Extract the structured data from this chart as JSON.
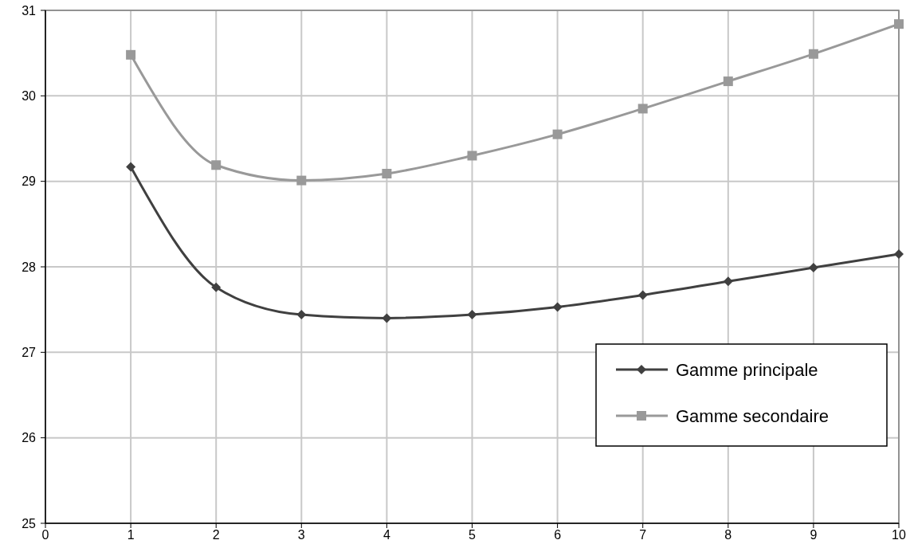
{
  "chart_data": {
    "type": "line",
    "x": [
      1,
      2,
      3,
      4,
      5,
      6,
      7,
      8,
      9,
      10
    ],
    "series": [
      {
        "name": "Gamme principale",
        "color": "#404040",
        "marker": "diamond",
        "values": [
          29.17,
          27.76,
          27.44,
          27.4,
          27.44,
          27.53,
          27.67,
          27.83,
          27.99,
          28.15
        ]
      },
      {
        "name": "Gamme secondaire",
        "color": "#999999",
        "marker": "square",
        "values": [
          30.48,
          29.19,
          29.01,
          29.09,
          29.3,
          29.55,
          29.85,
          30.17,
          30.49,
          30.84
        ]
      }
    ],
    "xlim": [
      0,
      10
    ],
    "xticks": [
      0,
      1,
      2,
      3,
      4,
      5,
      6,
      7,
      8,
      9,
      10
    ],
    "ylim": [
      25,
      31
    ],
    "yticks": [
      25,
      26,
      27,
      28,
      29,
      30,
      31
    ],
    "grid": true,
    "legend": "bottom right",
    "line_style": "solid"
  }
}
